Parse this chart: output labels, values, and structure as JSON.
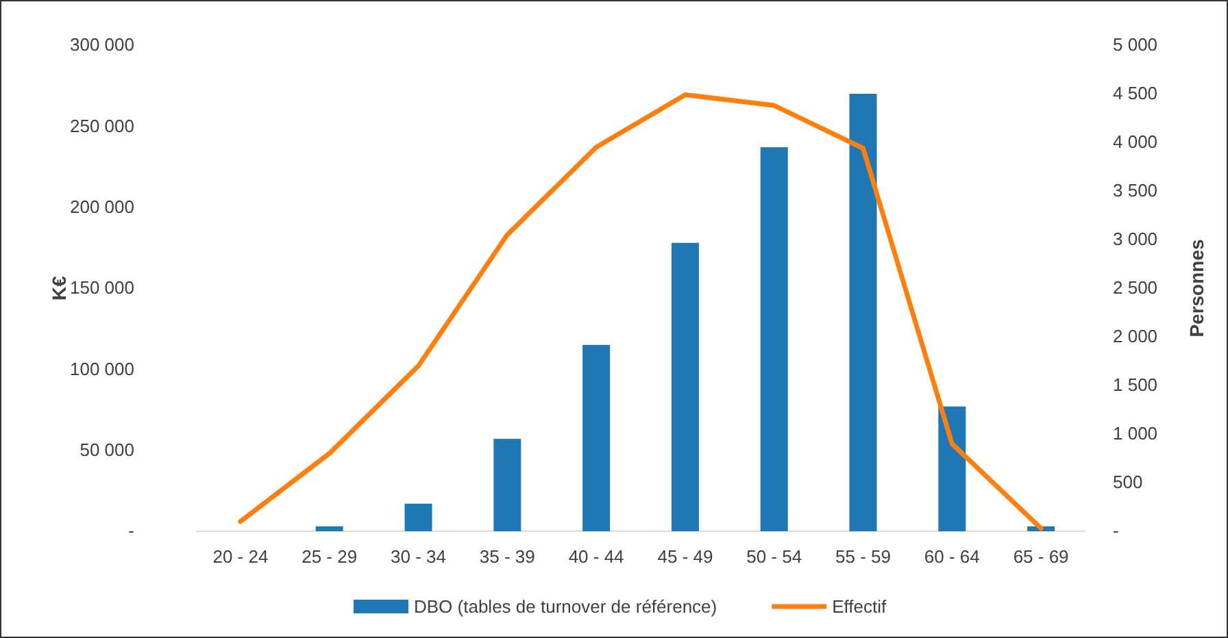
{
  "chart_data": {
    "type": "bar",
    "ylabel": "K€",
    "y2label": "Personnes",
    "categories": [
      "20 - 24",
      "25 - 29",
      "30 - 34",
      "35 - 39",
      "40 - 44",
      "45 - 49",
      "50 - 54",
      "55 - 59",
      "60 - 64",
      "65 - 69"
    ],
    "series": [
      {
        "name": "DBO (tables de turnover de référence)",
        "color": "#1f77b4",
        "values": [
          0,
          3000,
          17000,
          57000,
          115000,
          178000,
          237000,
          270000,
          77000,
          3000
        ]
      },
      {
        "name": "Effectif",
        "color": "#ff7f0e",
        "type": "line",
        "axis": "y2",
        "values": [
          100,
          800,
          1700,
          3050,
          3950,
          4490,
          4380,
          3940,
          900,
          30
        ]
      }
    ],
    "ylim": [
      0,
      300000
    ],
    "yticks": [
      {
        "value": 0,
        "label": "-"
      },
      {
        "value": 50000,
        "label": "50 000"
      },
      {
        "value": 100000,
        "label": "100 000"
      },
      {
        "value": 150000,
        "label": "150 000"
      },
      {
        "value": 200000,
        "label": "200 000"
      },
      {
        "value": 250000,
        "label": "250 000"
      },
      {
        "value": 300000,
        "label": "300 000"
      }
    ],
    "y2lim": [
      0,
      5000
    ],
    "y2ticks": [
      {
        "value": 0,
        "label": "-"
      },
      {
        "value": 500,
        "label": "500"
      },
      {
        "value": 1000,
        "label": "1 000"
      },
      {
        "value": 1500,
        "label": "1 500"
      },
      {
        "value": 2000,
        "label": "2 000"
      },
      {
        "value": 2500,
        "label": "2 500"
      },
      {
        "value": 3000,
        "label": "3 000"
      },
      {
        "value": 3500,
        "label": "3 500"
      },
      {
        "value": 4000,
        "label": "4 000"
      },
      {
        "value": 4500,
        "label": "4 500"
      },
      {
        "value": 5000,
        "label": "5 000"
      }
    ],
    "grid": false,
    "legend": "bottom",
    "marker": "none",
    "line_style": "solid"
  }
}
